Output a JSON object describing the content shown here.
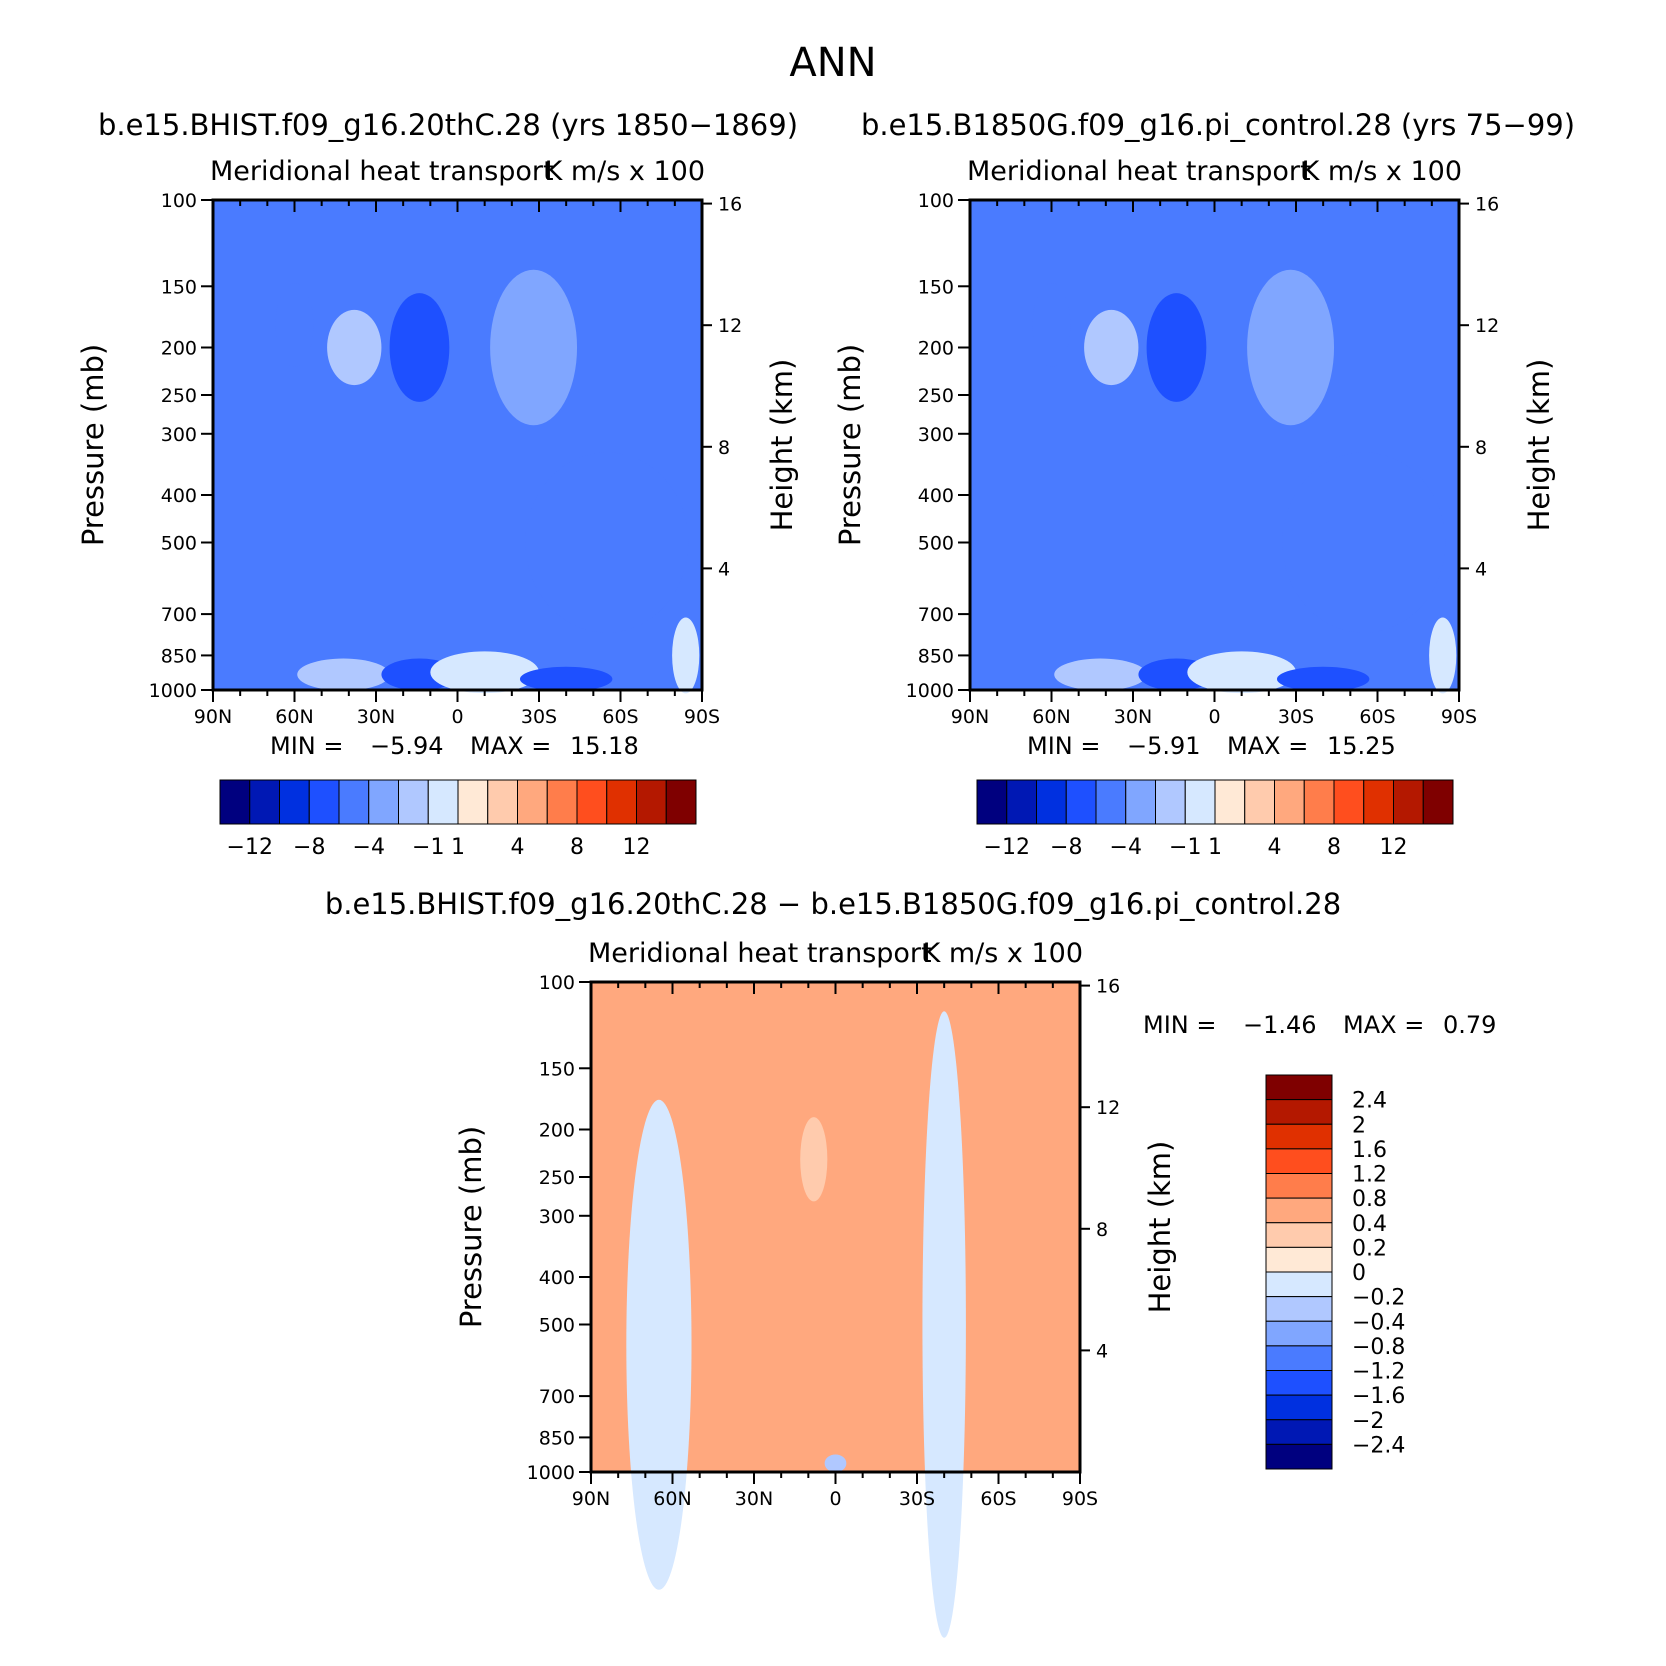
{
  "figure_title": "ANN",
  "chart_data": [
    {
      "type": "heatmap",
      "title": "b.e15.BHIST.f09_g16.20thC.28 (yrs 1850-1869)",
      "subtitle_left": "Meridional heat transport",
      "subtitle_right": "K m/s x 100",
      "ylabel": "Pressure (mb)",
      "ylabel_right": "Height (km)",
      "x_ticks": [
        "90N",
        "60N",
        "30N",
        "0",
        "30S",
        "60S",
        "90S"
      ],
      "y_ticks": [
        "100",
        "150",
        "200",
        "250",
        "300",
        "400",
        "500",
        "700",
        "850",
        "1000"
      ],
      "y2_ticks": [
        "16",
        "12",
        "8",
        "4"
      ],
      "min_label": "MIN =",
      "min_value": "-5.94",
      "max_label": "MAX =",
      "max_value": "15.18",
      "colorbar_labels": [
        "-12",
        "-8",
        "-4",
        "-1",
        "1",
        "4",
        "8",
        "12"
      ],
      "colorbar_colors": [
        "#00007f",
        "#0018b4",
        "#0030e0",
        "#1e50ff",
        "#4a7bff",
        "#80a6ff",
        "#b0c8ff",
        "#d6e8ff",
        "#ffe9d6",
        "#ffcbad",
        "#ffa87e",
        "#ff7d4b",
        "#ff4e1e",
        "#e03000",
        "#b41800",
        "#7f0000"
      ],
      "features": [
        {
          "x": 60,
          "p": 180,
          "rx": 7,
          "ry": 35,
          "value": -1
        },
        {
          "x": 38,
          "p": 200,
          "rx": 10,
          "ry": 35,
          "value": 4
        },
        {
          "x": 14,
          "p": 200,
          "rx": 11,
          "ry": 50,
          "value": -4
        },
        {
          "x": -28,
          "p": 200,
          "rx": 16,
          "ry": 70,
          "value": 1
        },
        {
          "x": -55,
          "p": 500,
          "rx": 30,
          "ry": 200,
          "value": -1
        },
        {
          "x": 42,
          "p": 930,
          "rx": 17,
          "ry": 70,
          "value": 4
        },
        {
          "x": 14,
          "p": 930,
          "rx": 14,
          "ry": 70,
          "value": -4
        },
        {
          "x": -10,
          "p": 920,
          "rx": 20,
          "ry": 90,
          "value": 8
        },
        {
          "x": -40,
          "p": 950,
          "rx": 17,
          "ry": 55,
          "value": -4
        },
        {
          "x": -84,
          "p": 850,
          "rx": 5,
          "ry": 150,
          "value": 8
        }
      ]
    },
    {
      "type": "heatmap",
      "title": "b.e15.B1850G.f09_g16.pi_control.28 (yrs 75-99)",
      "subtitle_left": "Meridional heat transport",
      "subtitle_right": "K m/s x 100",
      "ylabel": "Pressure (mb)",
      "ylabel_right": "Height (km)",
      "x_ticks": [
        "90N",
        "60N",
        "30N",
        "0",
        "30S",
        "60S",
        "90S"
      ],
      "y_ticks": [
        "100",
        "150",
        "200",
        "250",
        "300",
        "400",
        "500",
        "700",
        "850",
        "1000"
      ],
      "y2_ticks": [
        "16",
        "12",
        "8",
        "4"
      ],
      "min_label": "MIN =",
      "min_value": "-5.91",
      "max_label": "MAX =",
      "max_value": "15.25",
      "colorbar_labels": [
        "-12",
        "-8",
        "-4",
        "-1",
        "1",
        "4",
        "8",
        "12"
      ],
      "colorbar_colors": [
        "#00007f",
        "#0018b4",
        "#0030e0",
        "#1e50ff",
        "#4a7bff",
        "#80a6ff",
        "#b0c8ff",
        "#d6e8ff",
        "#ffe9d6",
        "#ffcbad",
        "#ffa87e",
        "#ff7d4b",
        "#ff4e1e",
        "#e03000",
        "#b41800",
        "#7f0000"
      ],
      "features": [
        {
          "x": 60,
          "p": 180,
          "rx": 7,
          "ry": 35,
          "value": -1
        },
        {
          "x": 38,
          "p": 200,
          "rx": 10,
          "ry": 35,
          "value": 4
        },
        {
          "x": 14,
          "p": 200,
          "rx": 11,
          "ry": 50,
          "value": -4
        },
        {
          "x": -28,
          "p": 200,
          "rx": 16,
          "ry": 70,
          "value": 1
        },
        {
          "x": -55,
          "p": 500,
          "rx": 30,
          "ry": 200,
          "value": -1
        },
        {
          "x": 42,
          "p": 930,
          "rx": 17,
          "ry": 70,
          "value": 4
        },
        {
          "x": 14,
          "p": 930,
          "rx": 14,
          "ry": 70,
          "value": -4
        },
        {
          "x": -10,
          "p": 920,
          "rx": 20,
          "ry": 90,
          "value": 8
        },
        {
          "x": -40,
          "p": 950,
          "rx": 17,
          "ry": 55,
          "value": -4
        },
        {
          "x": -84,
          "p": 850,
          "rx": 5,
          "ry": 150,
          "value": 8
        }
      ]
    },
    {
      "type": "heatmap",
      "title": "b.e15.BHIST.f09_g16.20thC.28 - b.e15.B1850G.f09_g16.pi_control.28",
      "subtitle_left": "Meridional heat transport",
      "subtitle_right": "K m/s x 100",
      "ylabel": "Pressure (mb)",
      "ylabel_right": "Height (km)",
      "x_ticks": [
        "90N",
        "60N",
        "30N",
        "0",
        "30S",
        "60S",
        "90S"
      ],
      "y_ticks": [
        "100",
        "150",
        "200",
        "250",
        "300",
        "400",
        "500",
        "700",
        "850",
        "1000"
      ],
      "y2_ticks": [
        "16",
        "12",
        "8",
        "4"
      ],
      "min_label": "MIN =",
      "min_value": "-1.46",
      "max_label": "MAX =",
      "max_value": "0.79",
      "colorbar_labels": [
        "2.4",
        "2",
        "1.6",
        "1.2",
        "0.8",
        "0.4",
        "0.2",
        "0",
        "-0.2",
        "-0.4",
        "-0.8",
        "-1.2",
        "-1.6",
        "-2",
        "-2.4"
      ],
      "colorbar_colors": [
        "#7f0000",
        "#b41800",
        "#e03000",
        "#ff4e1e",
        "#ff7d4b",
        "#ffa87e",
        "#ffcbad",
        "#ffe9d6",
        "#d6e8ff",
        "#b0c8ff",
        "#80a6ff",
        "#4a7bff",
        "#1e50ff",
        "#0030e0",
        "#0018b4",
        "#00007f"
      ],
      "features": [
        {
          "x": 65,
          "p": 550,
          "rx": 12,
          "ry": 450,
          "value": -0.2
        },
        {
          "x": 8,
          "p": 230,
          "rx": 5,
          "ry": 45,
          "value": 0.2
        },
        {
          "x": 0,
          "p": 960,
          "rx": 4,
          "ry": 40,
          "value": -0.4
        },
        {
          "x": -40,
          "p": 500,
          "rx": 8,
          "ry": 450,
          "value": -0.2
        }
      ]
    }
  ]
}
